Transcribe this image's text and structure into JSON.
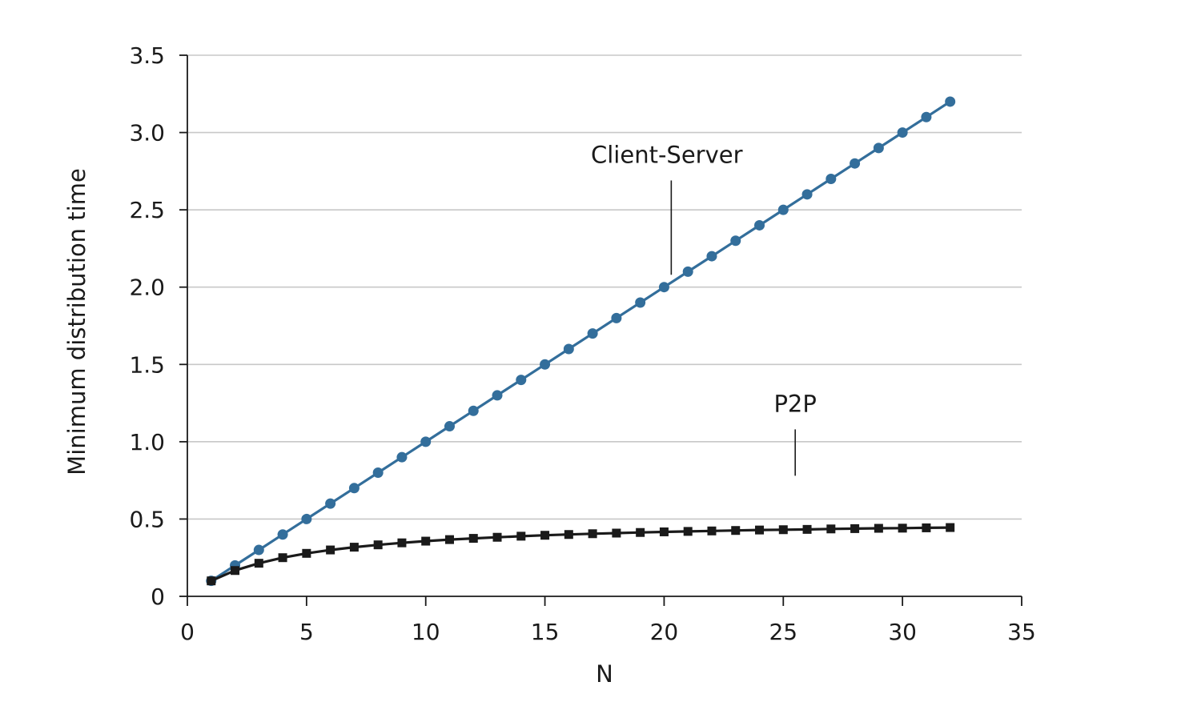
{
  "chart_data": {
    "type": "line",
    "xlabel": "N",
    "ylabel": "Minimum distribution time",
    "xlim": [
      0,
      35
    ],
    "ylim": [
      0,
      3.5
    ],
    "x_ticks": [
      0,
      5,
      10,
      15,
      20,
      25,
      30,
      35
    ],
    "y_ticks": [
      0,
      0.5,
      1.0,
      1.5,
      2.0,
      2.5,
      3.0,
      3.5
    ],
    "x_tick_labels": [
      "0",
      "5",
      "10",
      "15",
      "20",
      "25",
      "30",
      "35"
    ],
    "y_tick_labels": [
      "0",
      "0.5",
      "1.0",
      "1.5",
      "2.0",
      "2.5",
      "3.0",
      "3.5"
    ],
    "grid": "horizontal",
    "annotations": [
      {
        "text": "Client-Server",
        "series": "Client-Server",
        "at_x": 20.3
      },
      {
        "text": "P2P",
        "series": "P2P",
        "at_x": 25.5
      }
    ],
    "x": [
      1,
      2,
      3,
      4,
      5,
      6,
      7,
      8,
      9,
      10,
      11,
      12,
      13,
      14,
      15,
      16,
      17,
      18,
      19,
      20,
      21,
      22,
      23,
      24,
      25,
      26,
      27,
      28,
      29,
      30,
      31,
      32
    ],
    "series": [
      {
        "name": "Client-Server",
        "color": "#336e9b",
        "marker": "circle",
        "values": [
          0.1,
          0.2,
          0.3,
          0.4,
          0.5,
          0.6,
          0.7,
          0.8,
          0.9,
          1.0,
          1.1,
          1.2,
          1.3,
          1.4,
          1.5,
          1.6,
          1.7,
          1.8,
          1.9,
          2.0,
          2.1,
          2.2,
          2.3,
          2.4,
          2.5,
          2.6,
          2.7,
          2.8,
          2.9,
          3.0,
          3.1,
          3.2
        ]
      },
      {
        "name": "P2P",
        "color": "#1a1a1a",
        "marker": "square",
        "values": [
          0.1,
          0.167,
          0.214,
          0.25,
          0.278,
          0.3,
          0.318,
          0.333,
          0.346,
          0.357,
          0.367,
          0.375,
          0.382,
          0.389,
          0.395,
          0.4,
          0.405,
          0.409,
          0.413,
          0.417,
          0.42,
          0.423,
          0.426,
          0.429,
          0.431,
          0.433,
          0.436,
          0.438,
          0.44,
          0.441,
          0.443,
          0.445
        ]
      }
    ]
  }
}
